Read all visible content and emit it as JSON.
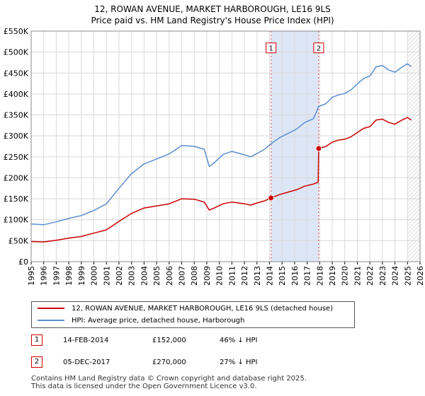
{
  "chart_data": {
    "type": "line",
    "title": "12, ROWAN AVENUE, MARKET HARBOROUGH, LE16 9LS",
    "subtitle": "Price paid vs. HM Land Registry's House Price Index (HPI)",
    "xlabel": "",
    "ylabel": "",
    "xlim": [
      1995,
      2026
    ],
    "ylim": [
      0,
      550000
    ],
    "x_ticks": [
      "1995",
      "1996",
      "1997",
      "1998",
      "1999",
      "2000",
      "2001",
      "2002",
      "2003",
      "2004",
      "2005",
      "2006",
      "2007",
      "2008",
      "2009",
      "2010",
      "2011",
      "2012",
      "2013",
      "2014",
      "2015",
      "2016",
      "2017",
      "2018",
      "2019",
      "2020",
      "2021",
      "2022",
      "2023",
      "2024",
      "2025",
      "2026"
    ],
    "y_ticks": [
      {
        "value": 0,
        "label": "£0"
      },
      {
        "value": 50000,
        "label": "£50K"
      },
      {
        "value": 100000,
        "label": "£100K"
      },
      {
        "value": 150000,
        "label": "£150K"
      },
      {
        "value": 200000,
        "label": "£200K"
      },
      {
        "value": 250000,
        "label": "£250K"
      },
      {
        "value": 300000,
        "label": "£300K"
      },
      {
        "value": 350000,
        "label": "£350K"
      },
      {
        "value": 400000,
        "label": "£400K"
      },
      {
        "value": 450000,
        "label": "£450K"
      },
      {
        "value": 500000,
        "label": "£500K"
      },
      {
        "value": 550000,
        "label": "£550K"
      }
    ],
    "grid": true,
    "series": [
      {
        "name": "12, ROWAN AVENUE, MARKET HARBOROUGH, LE16 9LS (detached house)",
        "color": "#cc0000",
        "points": [
          [
            1995.0,
            48000
          ],
          [
            1996.0,
            47000
          ],
          [
            1997.0,
            51000
          ],
          [
            1998.0,
            56000
          ],
          [
            1999.0,
            60000
          ],
          [
            2000.0,
            68000
          ],
          [
            2001.0,
            76000
          ],
          [
            2002.0,
            96000
          ],
          [
            2003.0,
            115000
          ],
          [
            2004.0,
            128000
          ],
          [
            2005.0,
            133000
          ],
          [
            2006.0,
            138000
          ],
          [
            2007.0,
            150000
          ],
          [
            2008.0,
            149000
          ],
          [
            2008.8,
            142000
          ],
          [
            2009.2,
            123000
          ],
          [
            2009.6,
            128000
          ],
          [
            2010.3,
            138000
          ],
          [
            2011.0,
            142000
          ],
          [
            2011.5,
            140000
          ],
          [
            2012.0,
            138000
          ],
          [
            2012.5,
            135000
          ],
          [
            2013.0,
            140000
          ],
          [
            2013.6,
            145000
          ],
          [
            2014.12,
            152000
          ],
          [
            2014.8,
            160000
          ],
          [
            2015.5,
            166000
          ],
          [
            2016.2,
            172000
          ],
          [
            2016.8,
            180000
          ],
          [
            2017.5,
            185000
          ],
          [
            2017.88,
            190000
          ],
          [
            2017.92,
            270000
          ],
          [
            2018.5,
            275000
          ],
          [
            2019.0,
            285000
          ],
          [
            2019.5,
            290000
          ],
          [
            2020.0,
            292000
          ],
          [
            2020.5,
            298000
          ],
          [
            2021.0,
            308000
          ],
          [
            2021.5,
            318000
          ],
          [
            2022.0,
            322000
          ],
          [
            2022.5,
            338000
          ],
          [
            2023.0,
            340000
          ],
          [
            2023.5,
            332000
          ],
          [
            2024.0,
            328000
          ],
          [
            2024.5,
            337000
          ],
          [
            2025.0,
            344000
          ],
          [
            2025.3,
            338000
          ]
        ]
      },
      {
        "name": "HPI: Average price, detached house, Harborough",
        "color": "#5b8fd0",
        "points": [
          [
            1995.0,
            90000
          ],
          [
            1996.0,
            88000
          ],
          [
            1997.0,
            95000
          ],
          [
            1998.0,
            103000
          ],
          [
            1999.0,
            110000
          ],
          [
            2000.0,
            122000
          ],
          [
            2001.0,
            138000
          ],
          [
            2002.0,
            175000
          ],
          [
            2003.0,
            210000
          ],
          [
            2004.0,
            233000
          ],
          [
            2005.0,
            245000
          ],
          [
            2006.0,
            257000
          ],
          [
            2007.0,
            277000
          ],
          [
            2008.0,
            275000
          ],
          [
            2008.8,
            268000
          ],
          [
            2009.2,
            227000
          ],
          [
            2009.6,
            236000
          ],
          [
            2010.3,
            256000
          ],
          [
            2011.0,
            263000
          ],
          [
            2011.5,
            259000
          ],
          [
            2012.0,
            255000
          ],
          [
            2012.5,
            250000
          ],
          [
            2013.0,
            258000
          ],
          [
            2013.6,
            268000
          ],
          [
            2014.12,
            281000
          ],
          [
            2014.8,
            296000
          ],
          [
            2015.5,
            306000
          ],
          [
            2016.2,
            317000
          ],
          [
            2016.8,
            332000
          ],
          [
            2017.5,
            341000
          ],
          [
            2017.92,
            370000
          ],
          [
            2018.5,
            377000
          ],
          [
            2019.0,
            392000
          ],
          [
            2019.5,
            398000
          ],
          [
            2020.0,
            401000
          ],
          [
            2020.5,
            410000
          ],
          [
            2021.0,
            424000
          ],
          [
            2021.5,
            437000
          ],
          [
            2022.0,
            443000
          ],
          [
            2022.5,
            465000
          ],
          [
            2023.0,
            468000
          ],
          [
            2023.5,
            457000
          ],
          [
            2024.0,
            452000
          ],
          [
            2024.5,
            463000
          ],
          [
            2025.0,
            472000
          ],
          [
            2025.3,
            465000
          ]
        ]
      }
    ],
    "transactions": [
      {
        "marker": "1",
        "date": "14-FEB-2014",
        "x": 2014.12,
        "price": 152000,
        "price_label": "£152,000",
        "hpi_diff": "46% ↓ HPI"
      },
      {
        "marker": "2",
        "date": "05-DEC-2017",
        "x": 2017.92,
        "price": 270000,
        "price_label": "£270,000",
        "hpi_diff": "27% ↓ HPI"
      }
    ],
    "shaded_range": [
      2014.12,
      2017.92
    ],
    "future_hatch_from": 2025.0
  },
  "colors": {
    "property": "#cc0000",
    "hpi": "#5b8fd0",
    "shade": "#dde6f5",
    "grid": "#d9d9d9"
  },
  "footer": {
    "line1": "Contains HM Land Registry data © Crown copyright and database right 2025.",
    "line2": "This data is licensed under the Open Government Licence v3.0."
  }
}
